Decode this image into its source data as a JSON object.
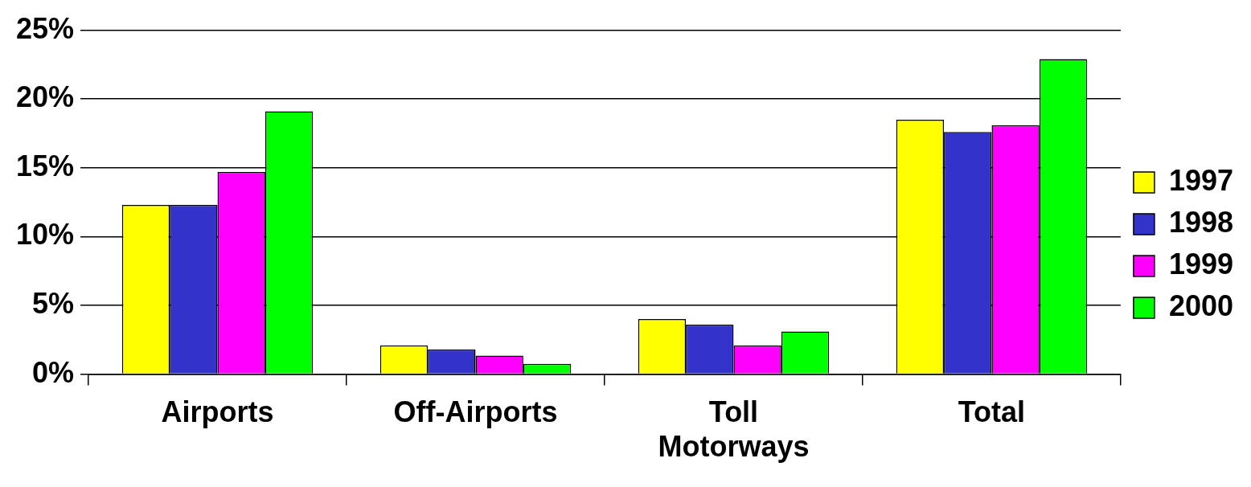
{
  "chart_data": {
    "type": "bar",
    "categories": [
      "Airports",
      "Off-Airports",
      "Toll Motorways",
      "Total"
    ],
    "series": [
      {
        "name": "1997",
        "color": "#ffff00",
        "values": [
          12.3,
          2.1,
          4.0,
          18.5
        ]
      },
      {
        "name": "1998",
        "color": "#3333cc",
        "values": [
          12.3,
          1.8,
          3.6,
          17.6
        ]
      },
      {
        "name": "1999",
        "color": "#ff00ff",
        "values": [
          14.7,
          1.35,
          2.1,
          18.1
        ]
      },
      {
        "name": "2000",
        "color": "#00ff00",
        "values": [
          19.1,
          0.75,
          3.1,
          22.9
        ]
      }
    ],
    "ylim": [
      0,
      25
    ],
    "yticks": [
      {
        "value": 0,
        "label": "0%"
      },
      {
        "value": 5,
        "label": "5%"
      },
      {
        "value": 10,
        "label": "10%"
      },
      {
        "value": 15,
        "label": "15%"
      },
      {
        "value": 20,
        "label": "20%"
      },
      {
        "value": 25,
        "label": "25%"
      }
    ],
    "grid": "y",
    "legend": "right"
  }
}
